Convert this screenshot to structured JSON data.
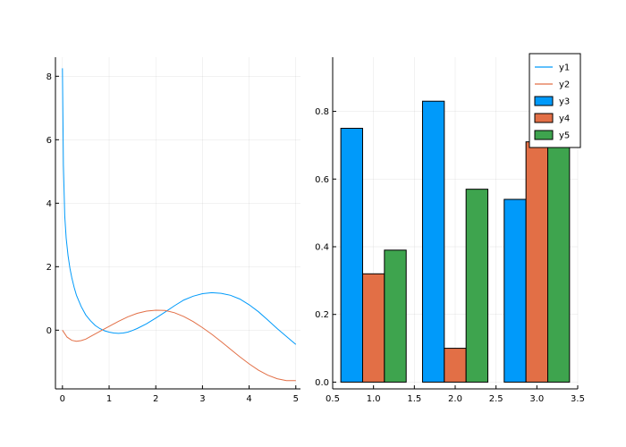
{
  "chart_data": [
    {
      "type": "line",
      "title": "",
      "xlabel": "",
      "ylabel": "",
      "xlim": [
        -0.15,
        5.1
      ],
      "ylim": [
        -1.85,
        8.6
      ],
      "xticks": [
        0,
        1,
        2,
        3,
        4,
        5
      ],
      "xtick_labels": [
        "0",
        "1",
        "2",
        "3",
        "4",
        "5"
      ],
      "yticks": [
        0,
        2,
        4,
        6,
        8
      ],
      "ytick_labels": [
        "0",
        "2",
        "4",
        "6",
        "8"
      ],
      "grid": true,
      "series": [
        {
          "name": "y1",
          "color": "#009AFA",
          "x": [
            0.0,
            0.02,
            0.05,
            0.08,
            0.12,
            0.16,
            0.2,
            0.25,
            0.3,
            0.4,
            0.5,
            0.6,
            0.7,
            0.8,
            0.9,
            1.0,
            1.1,
            1.2,
            1.3,
            1.4,
            1.5,
            1.6,
            1.8,
            2.0,
            2.2,
            2.4,
            2.6,
            2.8,
            3.0,
            3.2,
            3.4,
            3.6,
            3.8,
            4.0,
            4.2,
            4.4,
            4.6,
            4.8,
            5.0
          ],
          "y": [
            8.25,
            5.2,
            3.6,
            2.9,
            2.35,
            1.95,
            1.65,
            1.35,
            1.1,
            0.75,
            0.48,
            0.3,
            0.15,
            0.05,
            -0.02,
            -0.06,
            -0.09,
            -0.1,
            -0.09,
            -0.06,
            -0.01,
            0.05,
            0.2,
            0.38,
            0.57,
            0.77,
            0.95,
            1.07,
            1.15,
            1.18,
            1.16,
            1.1,
            0.98,
            0.8,
            0.58,
            0.32,
            0.05,
            -0.2,
            -0.45
          ]
        },
        {
          "name": "y2",
          "color": "#E26F46",
          "x": [
            0.0,
            0.1,
            0.2,
            0.3,
            0.4,
            0.5,
            0.6,
            0.8,
            1.0,
            1.2,
            1.4,
            1.6,
            1.8,
            2.0,
            2.2,
            2.4,
            2.6,
            2.8,
            3.0,
            3.2,
            3.4,
            3.6,
            3.8,
            4.0,
            4.2,
            4.4,
            4.6,
            4.8,
            5.0
          ],
          "y": [
            0.0,
            -0.22,
            -0.32,
            -0.35,
            -0.33,
            -0.28,
            -0.2,
            -0.04,
            0.12,
            0.28,
            0.42,
            0.53,
            0.6,
            0.63,
            0.62,
            0.55,
            0.43,
            0.27,
            0.08,
            -0.13,
            -0.36,
            -0.6,
            -0.84,
            -1.06,
            -1.26,
            -1.42,
            -1.53,
            -1.59,
            -1.59
          ]
        }
      ]
    },
    {
      "type": "bar",
      "title": "",
      "xlabel": "",
      "ylabel": "",
      "xlim": [
        0.5,
        3.5
      ],
      "ylim": [
        -0.02,
        0.96
      ],
      "xticks": [
        0.5,
        1.0,
        1.5,
        2.0,
        2.5,
        3.0,
        3.5
      ],
      "xtick_labels": [
        "0.5",
        "1.0",
        "1.5",
        "2.0",
        "2.5",
        "3.0",
        "3.5"
      ],
      "yticks": [
        0.0,
        0.2,
        0.4,
        0.6,
        0.8
      ],
      "ytick_labels": [
        "0.0",
        "0.2",
        "0.4",
        "0.6",
        "0.8"
      ],
      "grid": true,
      "categories": [
        1,
        2,
        3
      ],
      "series": [
        {
          "name": "y3",
          "color": "#009AFA",
          "values": [
            0.75,
            0.83,
            0.54
          ]
        },
        {
          "name": "y4",
          "color": "#E26F46",
          "values": [
            0.32,
            0.1,
            0.71
          ]
        },
        {
          "name": "y5",
          "color": "#3EA44E",
          "values": [
            0.39,
            0.57,
            0.7
          ]
        }
      ],
      "legend": {
        "position": "top-right",
        "entries": [
          {
            "label": "y1",
            "kind": "line",
            "color": "#009AFA"
          },
          {
            "label": "y2",
            "kind": "line",
            "color": "#E26F46"
          },
          {
            "label": "y3",
            "kind": "bar",
            "color": "#009AFA"
          },
          {
            "label": "y4",
            "kind": "bar",
            "color": "#E26F46"
          },
          {
            "label": "y5",
            "kind": "bar",
            "color": "#3EA44E"
          }
        ]
      }
    }
  ]
}
